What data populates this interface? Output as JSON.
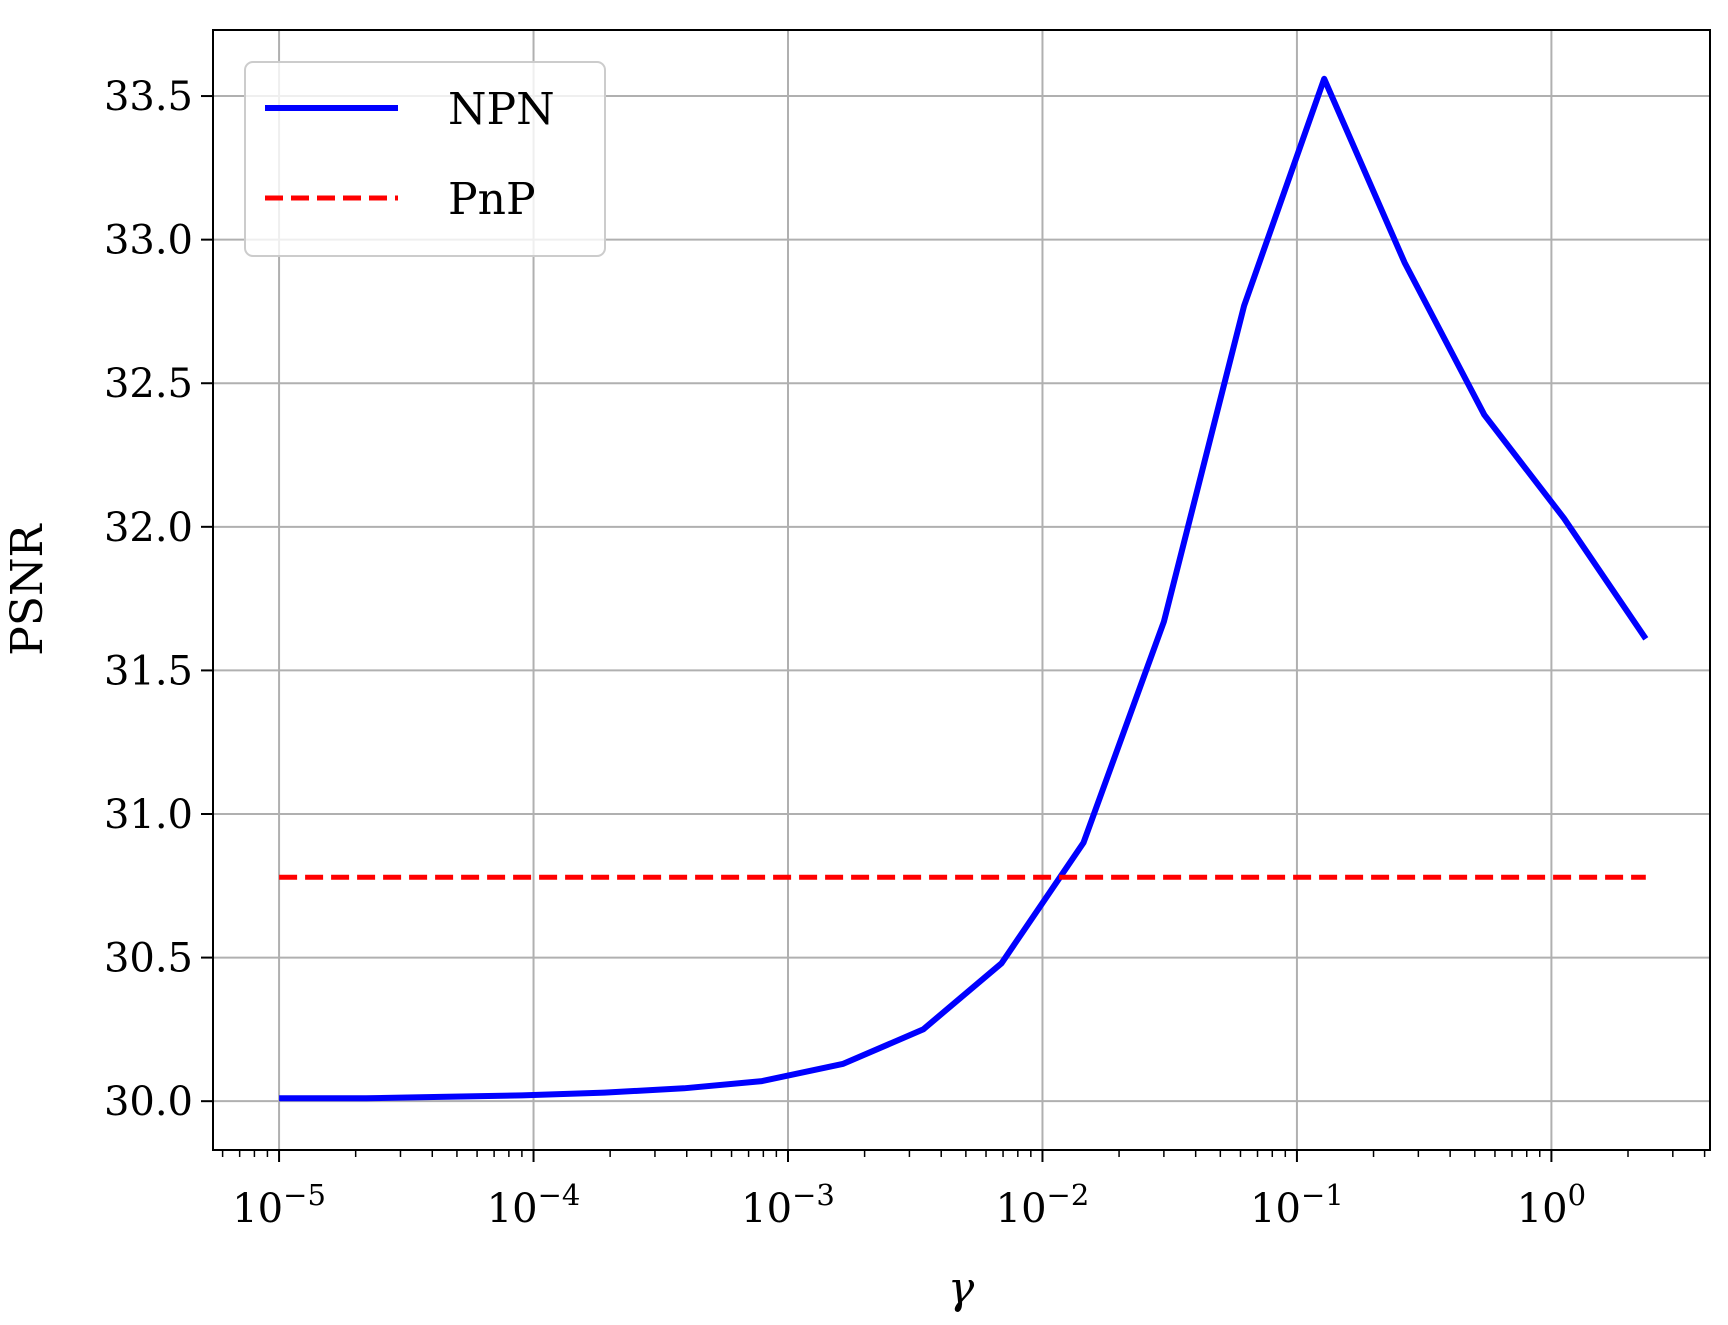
{
  "chart_data": {
    "type": "line",
    "xscale": "log",
    "xlabel": "γ",
    "ylabel": "PSNR",
    "xlim": [
      5.5e-06,
      4.2
    ],
    "ylim": [
      29.83,
      33.73
    ],
    "grid": true,
    "legend_position": "top-left",
    "x_ticks": [
      {
        "value": 1e-05,
        "base": "10",
        "exp": "−5"
      },
      {
        "value": 0.0001,
        "base": "10",
        "exp": "−4"
      },
      {
        "value": 0.001,
        "base": "10",
        "exp": "−3"
      },
      {
        "value": 0.01,
        "base": "10",
        "exp": "−2"
      },
      {
        "value": 0.1,
        "base": "10",
        "exp": "−1"
      },
      {
        "value": 1,
        "base": "10",
        "exp": "0"
      }
    ],
    "y_ticks": [
      {
        "value": 30.0,
        "label": "30.0"
      },
      {
        "value": 30.5,
        "label": "30.5"
      },
      {
        "value": 31.0,
        "label": "31.0"
      },
      {
        "value": 31.5,
        "label": "31.5"
      },
      {
        "value": 32.0,
        "label": "32.0"
      },
      {
        "value": 32.5,
        "label": "32.5"
      },
      {
        "value": 33.0,
        "label": "33.0"
      },
      {
        "value": 33.5,
        "label": "33.5"
      }
    ],
    "series": [
      {
        "name": "NPN",
        "color": "#0000ff",
        "style": "solid",
        "x": [
          1e-05,
          2.2e-05,
          4.3e-05,
          9e-05,
          0.00019,
          0.00039,
          0.00079,
          0.00165,
          0.0034,
          0.0069,
          0.0145,
          0.03,
          0.062,
          0.128,
          0.265,
          0.545,
          1.12,
          2.35
        ],
        "y": [
          30.01,
          30.01,
          30.015,
          30.02,
          30.03,
          30.045,
          30.07,
          30.13,
          30.25,
          30.48,
          30.9,
          31.67,
          32.77,
          33.56,
          32.92,
          32.39,
          32.03,
          31.61
        ]
      },
      {
        "name": "PnP",
        "color": "#ff0000",
        "style": "dashed",
        "x": [
          1e-05,
          2.35
        ],
        "y": [
          30.78,
          30.78
        ]
      }
    ]
  }
}
